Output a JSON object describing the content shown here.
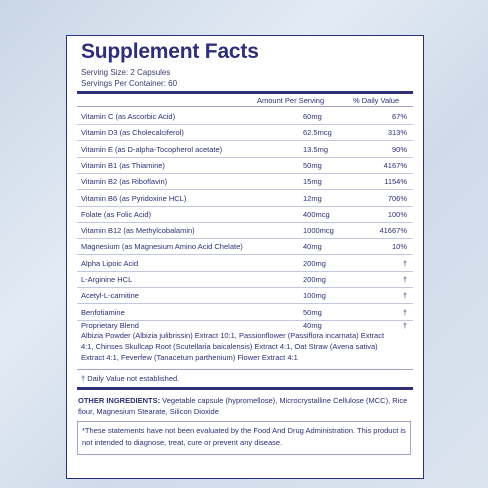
{
  "title": "Supplement Facts",
  "serving_size": "Serving Size: 2 Capsules",
  "servings_per_container": "Servings Per Container: 60",
  "col_amount": "Amount Per Serving",
  "col_dv": "% Daily Value",
  "rows": [
    {
      "name": "Vitamin C (as Ascorbic Acid)",
      "amount": "60mg",
      "dv": "67%"
    },
    {
      "name": "Vitamin D3 (as Cholecalciferol)",
      "amount": "62.5mcg",
      "dv": "313%"
    },
    {
      "name": "Vitamin E (as D-alpha-Tocopherol acetate)",
      "amount": "13.5mg",
      "dv": "90%"
    },
    {
      "name": "Vitamin B1 (as Thiamine)",
      "amount": "50mg",
      "dv": "4167%"
    },
    {
      "name": "Vitamin B2 (as Riboflavin)",
      "amount": "15mg",
      "dv": "1154%"
    },
    {
      "name": "Vitamin B6 (as Pyridoxine HCL)",
      "amount": "12mg",
      "dv": "706%"
    },
    {
      "name": "Folate (as Folic Acid)",
      "amount": "400mcg",
      "dv": "100%"
    },
    {
      "name": "Vitamin B12 (as Methylcobalamin)",
      "amount": "1000mcg",
      "dv": "41667%"
    },
    {
      "name": "Magnesium (as Magnesium Amino Acid Chelate)",
      "amount": "40mg",
      "dv": "10%"
    },
    {
      "name": "Alpha Lipoic Acid",
      "amount": "200mg",
      "dv": "†"
    },
    {
      "name": "L-Arginine HCL",
      "amount": "200mg",
      "dv": "†"
    },
    {
      "name": "Acetyl-L-carnitine",
      "amount": "100mg",
      "dv": "†"
    },
    {
      "name": "Benfotiamine",
      "amount": "50mg",
      "dv": "†"
    }
  ],
  "blend": {
    "name": "Proprietary Blend",
    "amount": "40mg",
    "dv": "†",
    "description": "Albizia Powder (Albizia julibrissin) Extract 10:1, Passionflower (Passiflora incarnata) Extract 4:1, Chinses Skullcap Root (Scutellaria baicalensis) Extract 4:1, Oat Straw (Avena sativa) Extract 4:1, Feverfew (Tanacetum parthenium) Flower Extract 4:1"
  },
  "footnote": "† Daily Value not established.",
  "other_label": "OTHER INGREDIENTS:",
  "other_text": " Vegetable capsule (hypromellose), Microcrystalline Cellulose (MCC), Rice flour, Magnesium Stearate, Silicon Dioxide",
  "disclaimer": "*These statements have not been evaluated by the Food And Drug Administration. This product is not intended to diagnose, treat, cure or prevent any disease."
}
